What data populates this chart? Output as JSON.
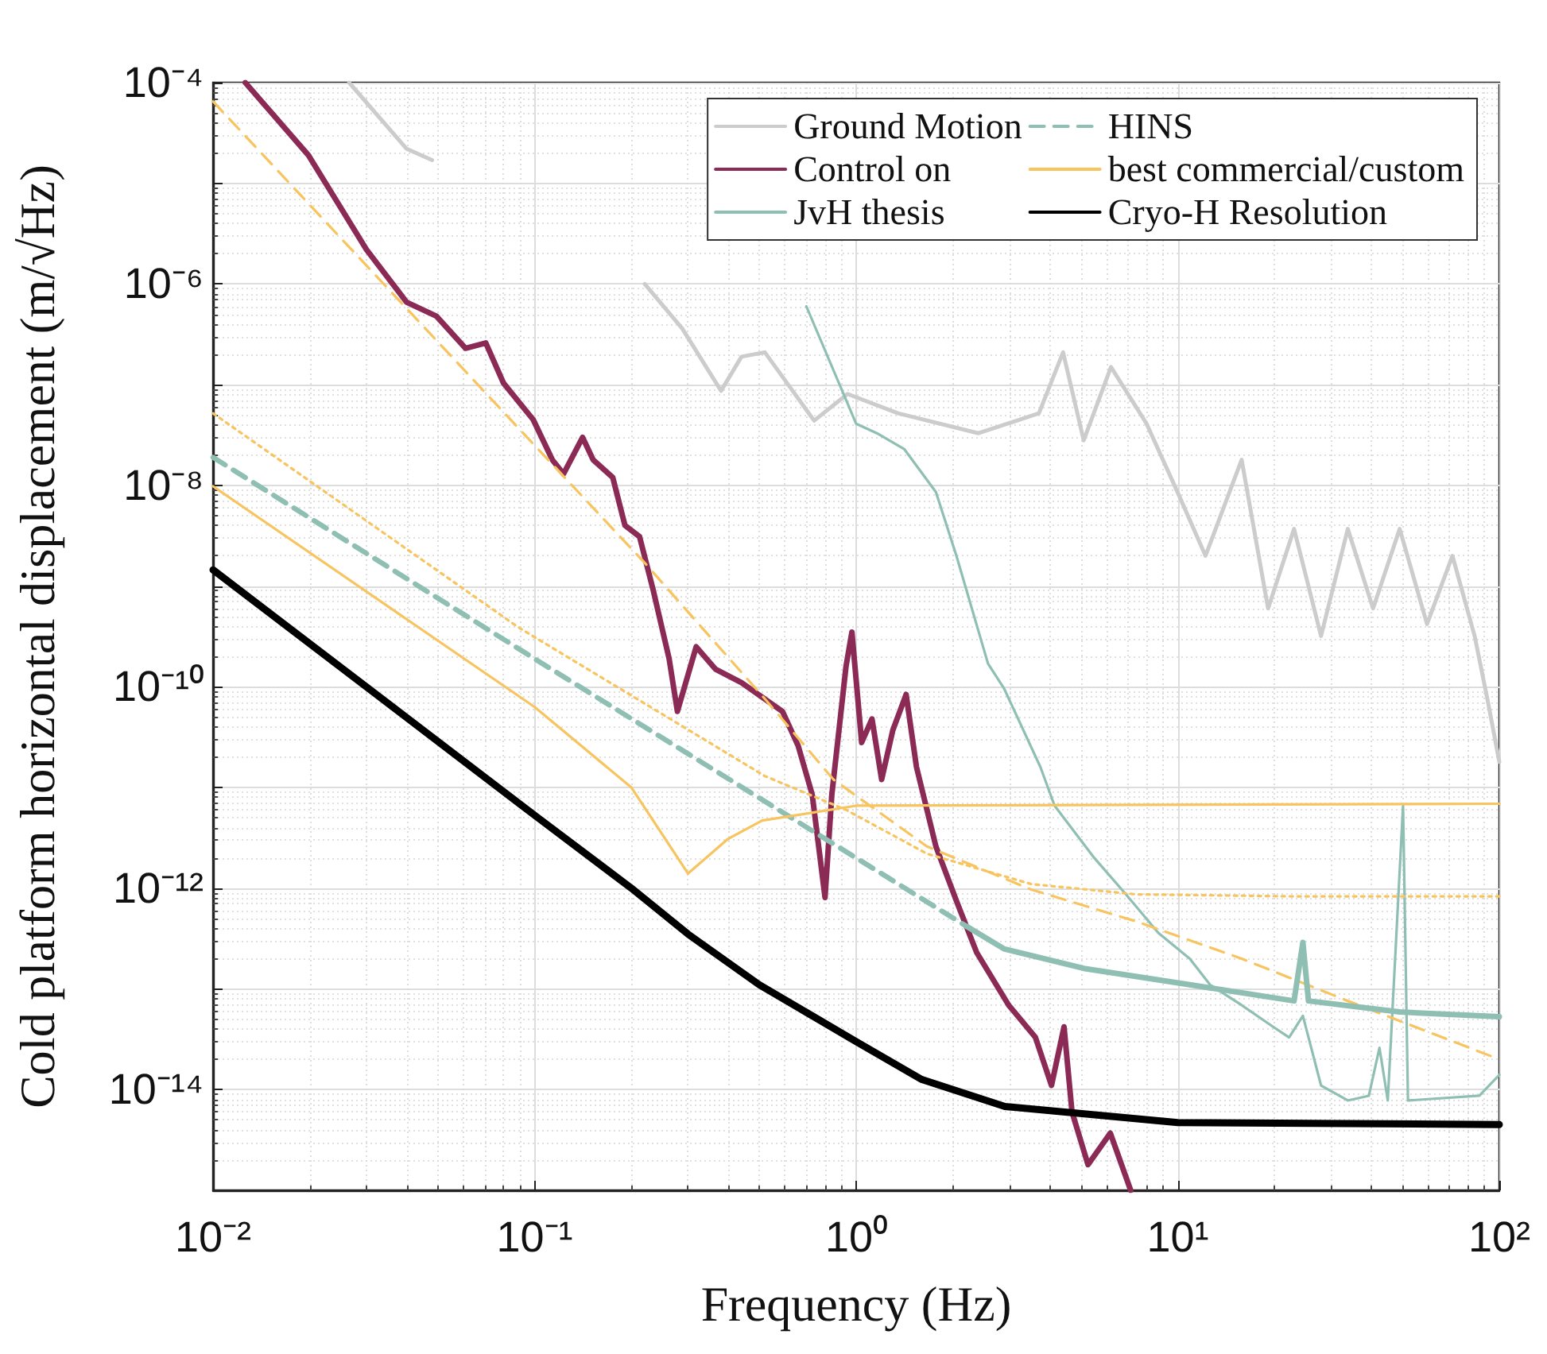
{
  "chart_data": {
    "type": "line",
    "xlabel": "Frequency (Hz)",
    "ylabel": "Cold platform horizontal displacement (m/√Hz)",
    "log": "xy",
    "grid": true,
    "legend": "top right",
    "xlim": [
      0.01,
      100
    ],
    "ylim": [
      1e-15,
      0.0001
    ],
    "xticks": [
      {
        "value": 0.01,
        "label": "10⁻²"
      },
      {
        "value": 0.1,
        "label": "10⁻¹"
      },
      {
        "value": 1,
        "label": "10⁰"
      },
      {
        "value": 10,
        "label": "10¹"
      },
      {
        "value": 100,
        "label": "10²"
      }
    ],
    "yticks": [
      {
        "value": 1e-15,
        "label": null
      },
      {
        "value": 1e-14,
        "label": "10⁻¹⁴"
      },
      {
        "value": 1e-13,
        "label": null
      },
      {
        "value": 1e-12,
        "label": "10⁻¹²"
      },
      {
        "value": 1e-11,
        "label": null
      },
      {
        "value": 1e-10,
        "label": "10⁻¹⁰"
      },
      {
        "value": 1e-09,
        "label": null
      },
      {
        "value": 1e-08,
        "label": "10⁻⁸"
      },
      {
        "value": 1e-07,
        "label": null
      },
      {
        "value": 1e-06,
        "label": "10⁻⁶"
      },
      {
        "value": 1e-05,
        "label": null
      },
      {
        "value": 0.0001,
        "label": "10⁻⁴"
      }
    ],
    "series": [
      {
        "name": "Ground Motion",
        "color": "#cccccc",
        "line_style": "solid",
        "x": [
          0.0265,
          0.04,
          0.048,
          0.1,
          0.22,
          0.288,
          0.38,
          0.44,
          0.52,
          0.74,
          0.94,
          1.35,
          2.4,
          3.7,
          4.4,
          5.1,
          6.2,
          8.0,
          10,
          12.2,
          15.8,
          19.1,
          23,
          27.9,
          33.8,
          40.5,
          49,
          59.6,
          71.5,
          83.8,
          91.8,
          100
        ],
        "values": [
          0.0001,
          2.2e-05,
          1.7e-05,
          null,
          1e-06,
          3.6e-07,
          8.7e-08,
          1.9e-07,
          2.1e-07,
          4.4e-08,
          8.1e-08,
          5.2e-08,
          3.3e-08,
          5.2e-08,
          2.1e-07,
          2.8e-08,
          1.5e-07,
          4.1e-08,
          8.5e-09,
          2e-09,
          1.8e-08,
          6e-10,
          3.7e-09,
          3.2e-10,
          3.7e-09,
          6e-10,
          3.7e-09,
          4.2e-10,
          2e-09,
          3.2e-10,
          7.6e-11,
          1.8e-11
        ]
      },
      {
        "name": "Control on",
        "color": "#8b2a55",
        "line_style": "solid",
        "x": [
          0.0126,
          0.0198,
          0.03,
          0.04,
          0.0495,
          0.061,
          0.0705,
          0.08,
          0.099,
          0.1135,
          0.123,
          0.141,
          0.152,
          0.175,
          0.191,
          0.212,
          0.234,
          0.262,
          0.278,
          0.318,
          0.365,
          0.44,
          0.59,
          0.66,
          0.73,
          0.8,
          0.84,
          0.93,
          0.97,
          1.04,
          1.12,
          1.2,
          1.3,
          1.43,
          1.54,
          1.77,
          2.05,
          2.37,
          2.98,
          3.61,
          4.05,
          4.43,
          4.69,
          5.26,
          6.17,
          7.14
        ],
        "values": [
          0.0001,
          1.9e-05,
          2.2e-06,
          6.6e-07,
          4.8e-07,
          2.3e-07,
          2.6e-07,
          1.04e-07,
          4.5e-08,
          1.8e-08,
          1.3e-08,
          3e-08,
          1.8e-08,
          1.2e-08,
          4e-09,
          3.1e-09,
          9e-10,
          1.9e-10,
          5.7e-11,
          2.5e-10,
          1.5e-10,
          1.1e-10,
          5.7e-11,
          2.6e-11,
          8.5e-12,
          8.1e-13,
          8.5e-12,
          1.6e-10,
          3.5e-10,
          2.8e-11,
          4.8e-11,
          1.2e-11,
          3.7e-11,
          8.4e-11,
          1.6e-11,
          2.6e-12,
          7.5e-13,
          2.3e-13,
          6.9e-14,
          3.3e-14,
          1.1e-14,
          4.2e-14,
          6e-15,
          1.8e-15,
          3.7e-15,
          1e-15
        ]
      },
      {
        "name": "JvH thesis",
        "color": "#8fbfb3",
        "line_style": "solid",
        "x": [
          0.7,
          1.0,
          1.16,
          1.41,
          1.77,
          2.05,
          2.57,
          2.88,
          3.74,
          4.14,
          5.5,
          6.9,
          8.7,
          10.9,
          12.6,
          15.8,
          19.8,
          22.2,
          24.5,
          27.9,
          33.8,
          39.3,
          42.4,
          45,
          50.2,
          52,
          86.7,
          100
        ],
        "values": [
          6e-07,
          4.1e-08,
          3.3e-08,
          2.3e-08,
          8.6e-09,
          2e-09,
          1.7e-10,
          9.7e-11,
          1.6e-11,
          6.6e-12,
          2e-12,
          8.7e-13,
          3.6e-13,
          2e-13,
          1.1e-13,
          6.9e-14,
          4.2e-14,
          3.3e-14,
          5.4e-14,
          1.1e-14,
          7.8e-15,
          8.7e-15,
          2.6e-14,
          7.8e-15,
          6.6e-12,
          7.8e-15,
          8.7e-15,
          1.4e-14
        ]
      },
      {
        "name": "HINS",
        "color": "#8fbfb3",
        "line_style": "dashed",
        "x": [
          0.01,
          0.1,
          2.2
        ],
        "values": [
          1.9e-08,
          1.9e-10,
          4.2e-13
        ]
      },
      {
        "name": "best commercial/custom",
        "color": "#f7c45f",
        "line_style": "solid",
        "x": [
          0.01,
          0.1,
          0.2,
          0.3,
          0.4,
          0.51,
          1.0,
          100
        ],
        "values": [
          9.8e-09,
          6.3e-11,
          1e-11,
          1.4e-12,
          3.1e-12,
          4.7e-12,
          6.6e-12,
          6.9e-12
        ]
      },
      {
        "name": "Cryo-H Resolution",
        "color": "#000000",
        "line_style": "solid",
        "x": [
          0.01,
          0.1,
          0.2,
          0.3,
          0.5,
          1,
          1.6,
          2.9,
          10,
          100
        ],
        "values": [
          1.45e-09,
          5.3e-12,
          1e-12,
          3.5e-13,
          1.1e-13,
          3e-14,
          1.26e-14,
          6.8e-15,
          4.7e-15,
          4.5e-15
        ]
      },
      {
        "color": "#f7c45f",
        "line_style": "dashed",
        "x": [
          0.01,
          0.1,
          0.22,
          0.52,
          0.85,
          1.66,
          3.5,
          7.4,
          15.8,
          33.8,
          100
        ],
        "values": [
          6.5e-05,
          2.5e-08,
          1.7e-09,
          7.6e-11,
          1.2e-11,
          2.6e-12,
          9.7e-13,
          4.7e-13,
          2e-13,
          7.6e-14,
          2e-14
        ]
      },
      {
        "color": "#f7c45f",
        "line_style": "dotted",
        "x": [
          0.01,
          0.089,
          0.52,
          0.93,
          1.66,
          3.5,
          7.4,
          23,
          100
        ],
        "values": [
          5.2e-08,
          3.9e-10,
          1.3e-11,
          6e-12,
          2.2e-12,
          1.1e-12,
          8.7e-13,
          8.3e-13,
          8.3e-13
        ]
      },
      {
        "color": "#8fbfb3",
        "line_style": "solid",
        "x": [
          2.2,
          2.88,
          5.1,
          10.9,
          23,
          24.5,
          25.5,
          49,
          100
        ],
        "values": [
          4.2e-13,
          2.5e-13,
          1.6e-13,
          1.1e-13,
          7.6e-14,
          2.9e-13,
          7.6e-14,
          5.9e-14,
          5.3e-14
        ]
      }
    ]
  }
}
